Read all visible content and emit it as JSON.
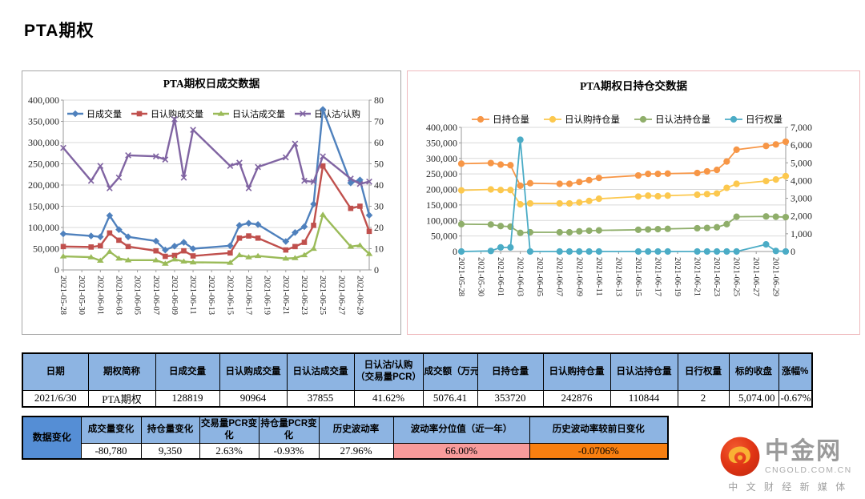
{
  "page": {
    "title": "PTA期权"
  },
  "chart_data": [
    {
      "type": "line",
      "title": "PTA期权日成交数据",
      "x_dates": [
        "2021-05-28",
        "2021-05-31",
        "2021-06-01",
        "2021-06-02",
        "2021-06-03",
        "2021-06-04",
        "2021-06-07",
        "2021-06-08",
        "2021-06-09",
        "2021-06-10",
        "2021-06-11",
        "2021-06-15",
        "2021-06-16",
        "2021-06-17",
        "2021-06-18",
        "2021-06-21",
        "2021-06-22",
        "2021-06-23",
        "2021-06-24",
        "2021-06-25",
        "2021-06-28",
        "2021-06-29",
        "2021-06-30"
      ],
      "x_day_offsets": [
        0,
        3,
        4,
        5,
        6,
        7,
        10,
        11,
        12,
        13,
        14,
        18,
        19,
        20,
        21,
        24,
        25,
        26,
        27,
        28,
        31,
        32,
        33
      ],
      "x_span": 33,
      "x_tick_days": [
        0,
        2,
        4,
        6,
        8,
        10,
        12,
        14,
        16,
        18,
        20,
        22,
        24,
        26,
        28,
        30,
        32
      ],
      "x_tick_labels": [
        "2021-05-28",
        "2021-05-30",
        "2021-06-01",
        "2021-06-03",
        "2021-06-05",
        "2021-06-07",
        "2021-06-09",
        "2021-06-11",
        "2021-06-13",
        "2021-06-15",
        "2021-06-17",
        "2021-06-19",
        "2021-06-21",
        "2021-06-23",
        "2021-06-25",
        "2021-06-27",
        "2021-06-29"
      ],
      "left_axis": {
        "min": 0,
        "max": 400000,
        "step": 50000
      },
      "right_axis": {
        "min": 0,
        "max": 80,
        "step": 10
      },
      "grid": true,
      "legend_position": "top-inside",
      "series": [
        {
          "name": "日成交量",
          "color": "#4F81BD",
          "marker": "diamond",
          "axis": "left",
          "values": [
            85000,
            80000,
            78000,
            128000,
            95000,
            78000,
            68000,
            47000,
            56000,
            65000,
            50000,
            57000,
            105000,
            110000,
            107000,
            67000,
            88000,
            102000,
            155000,
            378000,
            205000,
            212000,
            128819
          ]
        },
        {
          "name": "日认购成交量",
          "color": "#C0504D",
          "marker": "square",
          "axis": "left",
          "values": [
            55000,
            54000,
            57000,
            87000,
            70000,
            55000,
            45000,
            32000,
            34000,
            45000,
            33000,
            40000,
            75000,
            80000,
            75000,
            47000,
            55000,
            65000,
            105000,
            245000,
            145000,
            150000,
            90964
          ]
        },
        {
          "name": "日认沽成交量",
          "color": "#9BBB59",
          "marker": "triangle",
          "axis": "left",
          "values": [
            32000,
            30000,
            22000,
            43000,
            27000,
            23000,
            23000,
            15000,
            25000,
            20000,
            18000,
            17000,
            35000,
            30000,
            33000,
            27000,
            28000,
            35000,
            50000,
            130000,
            55000,
            58000,
            37855
          ]
        },
        {
          "name": "日认沽/认购",
          "color": "#8064A2",
          "marker": "x",
          "axis": "right",
          "values": [
            57.5,
            42,
            49,
            38.5,
            43.5,
            54,
            53.5,
            52,
            71,
            43.5,
            66,
            49,
            50.5,
            38.5,
            48.5,
            53,
            59.5,
            42,
            41.5,
            53.5,
            43,
            40.5,
            41.62
          ]
        }
      ]
    },
    {
      "type": "line",
      "title": "PTA期权日持仓交数据",
      "x_dates": [
        "2021-05-28",
        "2021-05-31",
        "2021-06-01",
        "2021-06-02",
        "2021-06-03",
        "2021-06-04",
        "2021-06-07",
        "2021-06-08",
        "2021-06-09",
        "2021-06-10",
        "2021-06-11",
        "2021-06-15",
        "2021-06-16",
        "2021-06-17",
        "2021-06-18",
        "2021-06-21",
        "2021-06-22",
        "2021-06-23",
        "2021-06-24",
        "2021-06-25",
        "2021-06-28",
        "2021-06-29",
        "2021-06-30"
      ],
      "x_day_offsets": [
        0,
        3,
        4,
        5,
        6,
        7,
        10,
        11,
        12,
        13,
        14,
        18,
        19,
        20,
        21,
        24,
        25,
        26,
        27,
        28,
        31,
        32,
        33
      ],
      "x_span": 33,
      "x_tick_days": [
        0,
        2,
        4,
        6,
        8,
        10,
        12,
        14,
        16,
        18,
        20,
        22,
        24,
        26,
        28,
        30,
        32
      ],
      "x_tick_labels": [
        "2021-05-28",
        "2021-05-30",
        "2021-06-01",
        "2021-06-03",
        "2021-06-05",
        "2021-06-07",
        "2021-06-09",
        "2021-06-11",
        "2021-06-13",
        "2021-06-15",
        "2021-06-17",
        "2021-06-19",
        "2021-06-21",
        "2021-06-23",
        "2021-06-25",
        "2021-06-27",
        "2021-06-29"
      ],
      "left_axis": {
        "min": 0,
        "max": 400000,
        "step": 50000
      },
      "right_axis": {
        "min": 0,
        "max": 7000,
        "step": 1000
      },
      "grid": true,
      "legend_position": "top",
      "series": [
        {
          "name": "日持仓量",
          "color": "#F79646",
          "marker": "circle",
          "axis": "left",
          "values": [
            283000,
            285000,
            280000,
            278000,
            212000,
            220000,
            218000,
            218000,
            224000,
            230000,
            237000,
            245000,
            250000,
            250000,
            251000,
            253000,
            258000,
            263000,
            290000,
            328000,
            340000,
            345000,
            353720
          ]
        },
        {
          "name": "日认购持仓量",
          "color": "#FCC84E",
          "marker": "circle",
          "axis": "left",
          "values": [
            197000,
            200000,
            198000,
            198000,
            152000,
            155000,
            155000,
            155000,
            158000,
            163000,
            170000,
            177000,
            180000,
            178000,
            180000,
            183000,
            185000,
            187000,
            205000,
            218000,
            227000,
            232000,
            242876
          ]
        },
        {
          "name": "日认沽持仓量",
          "color": "#8FAE6A",
          "marker": "circle",
          "axis": "left",
          "values": [
            88000,
            87000,
            82000,
            80000,
            60000,
            62000,
            62000,
            62000,
            65000,
            67000,
            68000,
            70000,
            71000,
            72000,
            73000,
            75000,
            76000,
            78000,
            88000,
            112000,
            113000,
            112000,
            110844
          ]
        },
        {
          "name": "日行权量",
          "color": "#4BACC6",
          "marker": "circle",
          "axis": "right",
          "values": [
            0,
            30,
            230,
            230,
            6300,
            0,
            0,
            0,
            0,
            0,
            0,
            0,
            0,
            0,
            0,
            0,
            0,
            0,
            0,
            0,
            400,
            30,
            2
          ]
        }
      ]
    }
  ],
  "tables": {
    "summary": {
      "headers": [
        "日期",
        "期权简称",
        "日成交量",
        "日认购成交量",
        "日认沽成交量",
        "日认沽/认购（交易量PCR）",
        "成交额（万元）",
        "日持仓量",
        "日认购持仓量",
        "日认沽持仓量",
        "日行权量",
        "标的收盘",
        "涨幅%"
      ],
      "row": [
        "2021/6/30",
        "PTA期权",
        "128819",
        "90964",
        "37855",
        "41.62%",
        "5076.41",
        "353720",
        "242876",
        "110844",
        "2",
        "5,074.00",
        "-0.67%"
      ]
    },
    "changes": {
      "label": "数据变化",
      "headers": [
        "成交量变化",
        "持仓量变化",
        "交易量PCR变化",
        "持仓量PCR变化",
        "历史波动率",
        "波动率分位值（近一年）",
        "历史波动率较前日变化"
      ],
      "values": [
        "-80,780",
        "9,350",
        "2.63%",
        "-0.93%",
        "27.96%",
        "66.00%",
        "-0.0706%"
      ],
      "colors": {
        "header_bg": "#8DB4E2",
        "label_bg": "#558ED5",
        "percentile_bg": "#F89B9B",
        "hv_change_bg": "#F87F10"
      }
    }
  },
  "logo": {
    "name": "中金网",
    "domain": "CNGOLD.COM.CN",
    "tagline": "中 文 财 经 新 媒 体",
    "icon": "cloud-swirl-icon",
    "icon_color": "#DD3312",
    "swirl_color": "#F9B234"
  }
}
